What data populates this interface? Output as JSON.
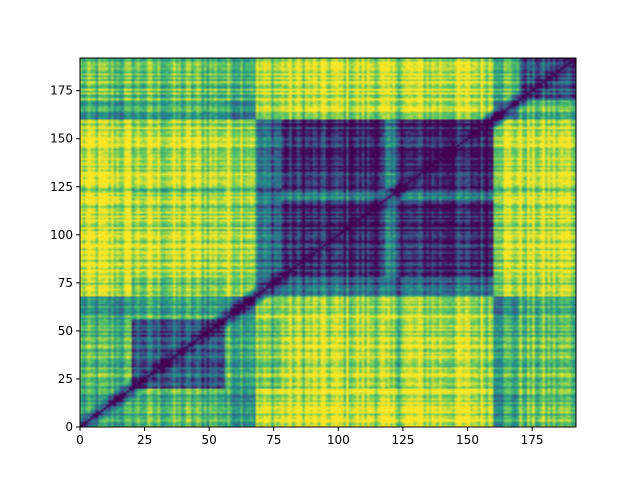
{
  "chart_data": {
    "type": "heatmap",
    "title": "",
    "xlabel": "",
    "ylabel": "",
    "n": 192,
    "xlim": [
      0,
      192
    ],
    "ylim": [
      0,
      192
    ],
    "origin": "lower",
    "colormap": "viridis",
    "colormap_stops": [
      "#440154",
      "#3b528b",
      "#21918c",
      "#5ec962",
      "#fde725"
    ],
    "grid": false,
    "diagonal": "dark (zero distance)",
    "x_ticks": [
      {
        "value": 0,
        "label": "0"
      },
      {
        "value": 25,
        "label": "25"
      },
      {
        "value": 50,
        "label": "50"
      },
      {
        "value": 75,
        "label": "75"
      },
      {
        "value": 100,
        "label": "100"
      },
      {
        "value": 125,
        "label": "125"
      },
      {
        "value": 150,
        "label": "150"
      },
      {
        "value": 175,
        "label": "175"
      }
    ],
    "y_ticks": [
      {
        "value": 0,
        "label": "0"
      },
      {
        "value": 25,
        "label": "25"
      },
      {
        "value": 50,
        "label": "50"
      },
      {
        "value": 75,
        "label": "75"
      },
      {
        "value": 100,
        "label": "100"
      },
      {
        "value": 125,
        "label": "125"
      },
      {
        "value": 150,
        "label": "150"
      },
      {
        "value": 175,
        "label": "175"
      }
    ],
    "segments": [
      {
        "start": 0,
        "end": 20,
        "group": "A"
      },
      {
        "start": 20,
        "end": 56,
        "group": "B"
      },
      {
        "start": 56,
        "end": 68,
        "group": "A"
      },
      {
        "start": 68,
        "end": 78,
        "group": "C"
      },
      {
        "start": 78,
        "end": 118,
        "group": "D"
      },
      {
        "start": 118,
        "end": 124,
        "group": "C"
      },
      {
        "start": 124,
        "end": 160,
        "group": "D"
      },
      {
        "start": 160,
        "end": 170,
        "group": "A"
      },
      {
        "start": 170,
        "end": 192,
        "group": "E"
      }
    ],
    "group_similarity": {
      "A-A": 0.55,
      "A-B": 0.65,
      "A-C": 0.85,
      "A-D": 0.9,
      "A-E": 0.7,
      "B-B": 0.28,
      "B-C": 0.75,
      "B-D": 0.88,
      "B-E": 0.72,
      "C-C": 0.3,
      "C-D": 0.35,
      "C-E": 0.85,
      "D-D": 0.1,
      "D-E": 0.9,
      "E-E": 0.25
    }
  }
}
